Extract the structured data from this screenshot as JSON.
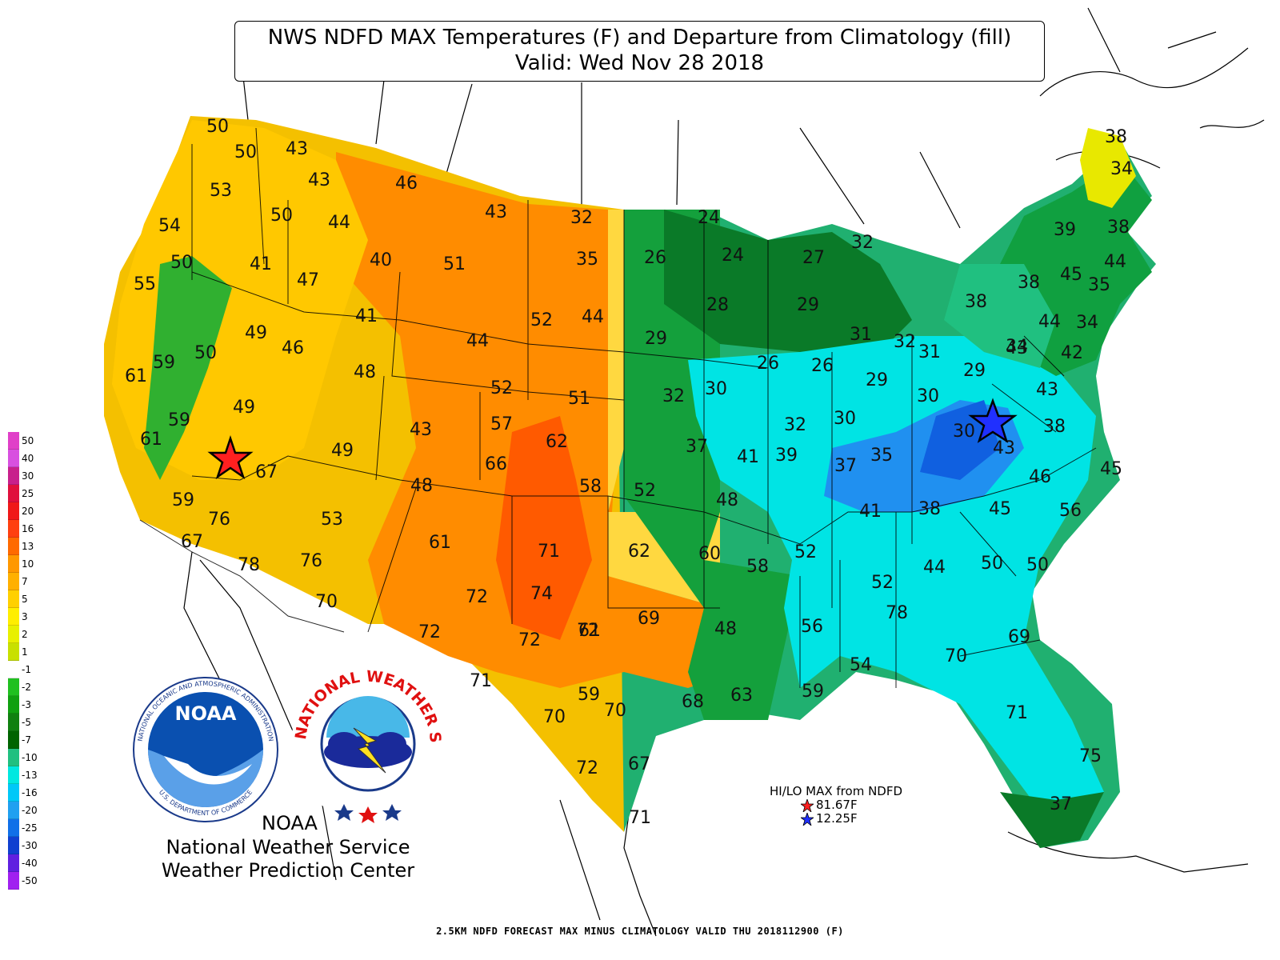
{
  "title": {
    "line1": "NWS NDFD MAX Temperatures (F) and Departure from Climatology (fill)",
    "line2": "Valid: Wed Nov 28 2018"
  },
  "colorbar": {
    "labels": [
      "50",
      "40",
      "30",
      "25",
      "20",
      "16",
      "13",
      "10",
      "7",
      "5",
      "3",
      "2",
      "1",
      "-1",
      "-2",
      "-3",
      "-5",
      "-7",
      "-10",
      "-13",
      "-16",
      "-20",
      "-25",
      "-30",
      "-40",
      "-50"
    ],
    "colors": [
      "#e040c8",
      "#d850e0",
      "#c8208c",
      "#e0103c",
      "#f01818",
      "#ff4010",
      "#ff6a00",
      "#ff9800",
      "#ffb000",
      "#ffd000",
      "#ffee00",
      "#e8f000",
      "#c8e000",
      "#ffffff",
      "#20c020",
      "#10a010",
      "#108010",
      "#006400",
      "#20c080",
      "#00e8e0",
      "#00c8f8",
      "#20a0f0",
      "#1070e8",
      "#1040d0",
      "#6020e0",
      "#a020f0"
    ]
  },
  "temperatures": [
    "50",
    "50",
    "43",
    "43",
    "46",
    "43",
    "32",
    "24",
    "53",
    "50",
    "44",
    "54",
    "50",
    "41",
    "40",
    "51",
    "35",
    "26",
    "24",
    "27",
    "32",
    "55",
    "47",
    "28",
    "29",
    "49",
    "41",
    "52",
    "44",
    "29",
    "31",
    "32",
    "59",
    "50",
    "46",
    "44",
    "26",
    "26",
    "48",
    "30",
    "31",
    "61",
    "52",
    "51",
    "32",
    "29",
    "30",
    "29",
    "34",
    "49",
    "57",
    "62",
    "43",
    "59",
    "61",
    "32",
    "30",
    "30",
    "37",
    "41",
    "39",
    "66",
    "49",
    "37",
    "35",
    "67",
    "58",
    "52",
    "48",
    "48",
    "41",
    "38",
    "45",
    "76",
    "53",
    "59",
    "61",
    "67",
    "60",
    "58",
    "52",
    "44",
    "71",
    "62",
    "50",
    "50",
    "78",
    "76",
    "72",
    "74",
    "72",
    "69",
    "48",
    "52",
    "78",
    "70",
    "72",
    "72",
    "61",
    "56",
    "69",
    "71",
    "59",
    "54",
    "70",
    "70",
    "70",
    "68",
    "63",
    "59",
    "71",
    "72",
    "67",
    "75",
    "71",
    "37",
    "38",
    "34",
    "39",
    "38",
    "38",
    "45",
    "44",
    "35",
    "38",
    "44",
    "34",
    "43",
    "42",
    "43",
    "38",
    "43",
    "46",
    "45",
    "56"
  ],
  "logos": {
    "noaa_text": "NOAA",
    "noaa_ring": "NATIONAL OCEANIC AND ATMOSPHERIC ADMINISTRATION",
    "noaa_ring_bottom": "U.S. DEPARTMENT OF COMMERCE",
    "nws_ring": "NATIONAL WEATHER SERVICE"
  },
  "credit": {
    "line1": "NOAA",
    "line2": "National Weather Service",
    "line3": "Weather Prediction Center"
  },
  "hilo": {
    "title": "HI/LO MAX from NDFD",
    "hi_value": "81.67F",
    "lo_value": "12.25F",
    "hi_color": "#ff2020",
    "lo_color": "#2030ff"
  },
  "footer": "2.5KM NDFD FORECAST MAX MINUS CLIMATOLOGY VALID THU 2018112900 (F)"
}
